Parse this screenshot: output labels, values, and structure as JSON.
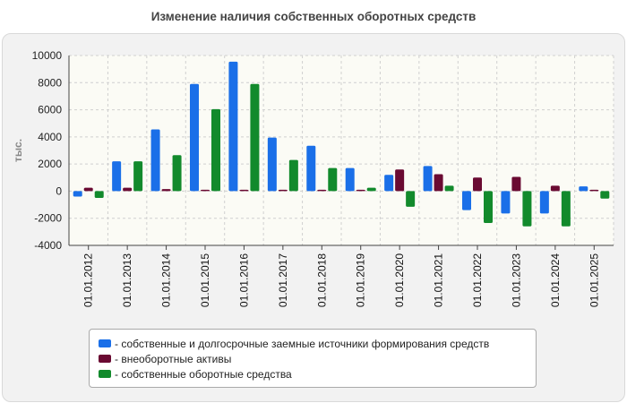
{
  "chart_data": {
    "type": "bar",
    "title": "Изменение наличия собственных оборотных средств",
    "ylabel": "тыс.",
    "xlabel": "",
    "ylim": [
      -4000,
      10000
    ],
    "yticks": [
      -4000,
      -2000,
      0,
      2000,
      4000,
      6000,
      8000,
      10000
    ],
    "grid": true,
    "categories": [
      "01.01.2012",
      "01.01.2013",
      "01.01.2014",
      "01.01.2015",
      "01.01.2016",
      "01.01.2017",
      "01.01.2018",
      "01.01.2019",
      "01.01.2020",
      "01.01.2021",
      "01.01.2022",
      "01.01.2023",
      "01.01.2024",
      "01.01.2025"
    ],
    "series": [
      {
        "name": "- собственные и долгосрочные заемные источники формирования средств",
        "color": "#1a6fe8",
        "values": [
          -400,
          2200,
          4550,
          7900,
          9550,
          3950,
          3350,
          1700,
          1200,
          1850,
          -1400,
          -1650,
          -1650,
          350
        ]
      },
      {
        "name": "- внеоборотные активы",
        "color": "#6a0a32",
        "values": [
          250,
          250,
          150,
          100,
          100,
          100,
          100,
          100,
          1600,
          1250,
          1000,
          1050,
          400,
          100
        ]
      },
      {
        "name": "- собственные оборотные средства",
        "color": "#128a2c",
        "values": [
          -500,
          2200,
          2650,
          6050,
          7900,
          2300,
          1700,
          250,
          -1150,
          400,
          -2350,
          -2600,
          -2600,
          -550
        ]
      }
    ],
    "legend_position": "bottom"
  }
}
